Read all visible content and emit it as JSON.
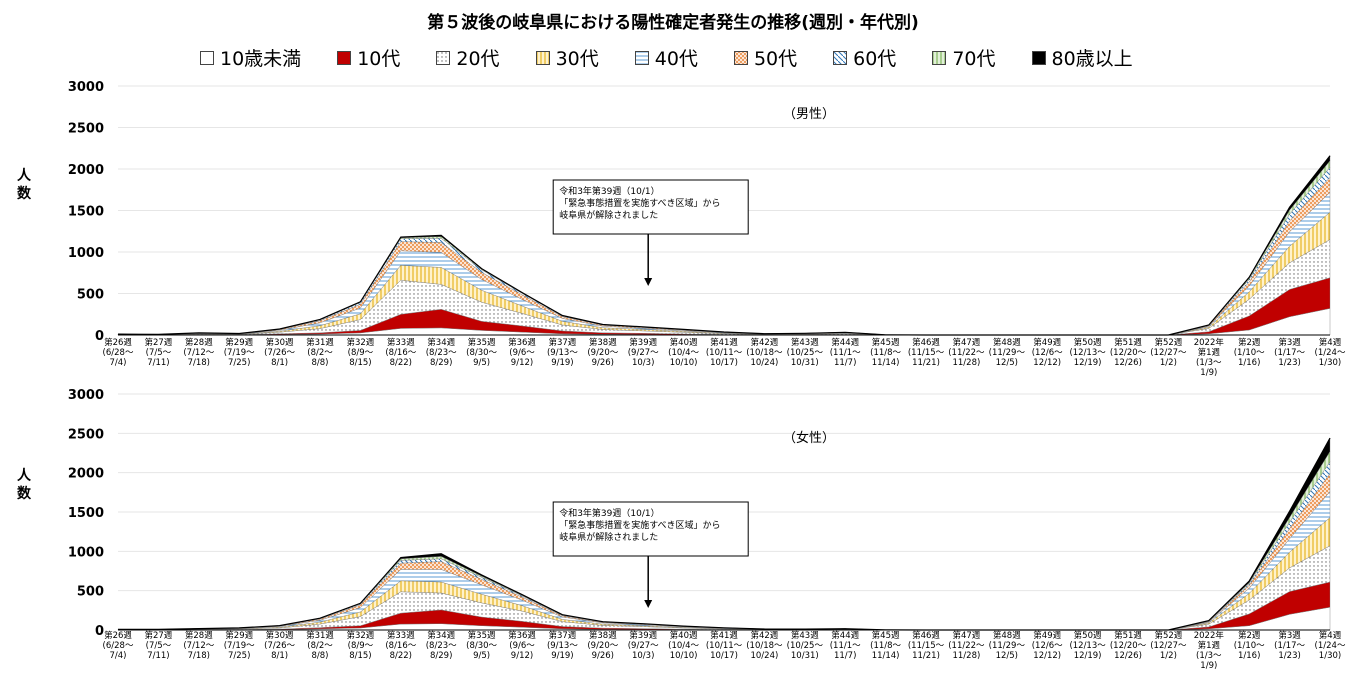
{
  "title": "第５波後の岐阜県における陽性確定者発生の推移(週別・年代別)",
  "legend": [
    {
      "name": "10歳未満",
      "color": "#ffffff",
      "pattern": "none"
    },
    {
      "name": "10代",
      "color": "#c00000",
      "pattern": "solid"
    },
    {
      "name": "20代",
      "color": "#ffffff",
      "pattern": "dots"
    },
    {
      "name": "30代",
      "color": "#ffd966",
      "pattern": "vlines"
    },
    {
      "name": "40代",
      "color": "#9dc3e6",
      "pattern": "hlines"
    },
    {
      "name": "50代",
      "color": "#f4b183",
      "pattern": "grid"
    },
    {
      "name": "60代",
      "color": "#2e75b6",
      "pattern": "diag"
    },
    {
      "name": "70代",
      "color": "#a9d18e",
      "pattern": "vlines2"
    },
    {
      "name": "80歳以上",
      "color": "#000000",
      "pattern": "solid"
    }
  ],
  "chart_data": [
    {
      "type": "area",
      "stacked": true,
      "panel_label": "（男性）",
      "ylabel": "人\n数",
      "ylim": [
        0,
        3000
      ],
      "yticks": [
        "0",
        "500",
        "1000",
        "1500",
        "2000",
        "2500",
        "3000"
      ],
      "categories": [
        [
          "第26週",
          "(6/28～",
          "7/4)"
        ],
        [
          "第27週",
          "(7/5～",
          "7/11)"
        ],
        [
          "第28週",
          "(7/12～",
          "7/18)"
        ],
        [
          "第29週",
          "(7/19～",
          "7/25)"
        ],
        [
          "第30週",
          "(7/26～",
          "8/1)"
        ],
        [
          "第31週",
          "(8/2～",
          "8/8)"
        ],
        [
          "第32週",
          "(8/9～",
          "8/15)"
        ],
        [
          "第33週",
          "(8/16～",
          "8/22)"
        ],
        [
          "第34週",
          "(8/23～",
          "8/29)"
        ],
        [
          "第35週",
          "(8/30～",
          "9/5)"
        ],
        [
          "第36週",
          "(9/6～",
          "9/12)"
        ],
        [
          "第37週",
          "(9/13～",
          "9/19)"
        ],
        [
          "第38週",
          "(9/20～",
          "9/26)"
        ],
        [
          "第39週",
          "(9/27～",
          "10/3)"
        ],
        [
          "第40週",
          "(10/4～",
          "10/10)"
        ],
        [
          "第41週",
          "(10/11～",
          "10/17)"
        ],
        [
          "第42週",
          "(10/18～",
          "10/24)"
        ],
        [
          "第43週",
          "(10/25～",
          "10/31)"
        ],
        [
          "第44週",
          "(11/1～",
          "11/7)"
        ],
        [
          "第45週",
          "(11/8～",
          "11/14)"
        ],
        [
          "第46週",
          "(11/15～",
          "11/21)"
        ],
        [
          "第47週",
          "(11/22～",
          "11/28)"
        ],
        [
          "第48週",
          "(11/29～",
          "12/5)"
        ],
        [
          "第49週",
          "(12/6～",
          "12/12)"
        ],
        [
          "第50週",
          "(12/13～",
          "12/19)"
        ],
        [
          "第51週",
          "(12/20～",
          "12/26)"
        ],
        [
          "第52週",
          "(12/27～",
          "1/2)"
        ],
        [
          "2022年",
          "第1週",
          "(1/3～",
          "1/9)"
        ],
        [
          "第2週",
          "(1/10～",
          "1/16)"
        ],
        [
          "第3週",
          "(1/17～",
          "1/23)"
        ],
        [
          "第4週",
          "(1/24～",
          "1/30)"
        ]
      ],
      "series": [
        {
          "name": "10歳未満",
          "values": [
            1,
            1,
            3,
            2,
            6,
            12,
            25,
            80,
            85,
            55,
            35,
            15,
            8,
            6,
            4,
            2,
            1,
            1,
            2,
            0,
            0,
            0,
            0,
            0,
            0,
            0,
            0,
            15,
            60,
            220,
            320
          ]
        },
        {
          "name": "10代",
          "values": [
            1,
            1,
            3,
            2,
            8,
            15,
            30,
            170,
            225,
            110,
            75,
            35,
            18,
            14,
            8,
            4,
            2,
            2,
            3,
            0,
            0,
            0,
            0,
            0,
            0,
            0,
            0,
            25,
            170,
            330,
            370
          ]
        },
        {
          "name": "20代",
          "values": [
            3,
            2,
            6,
            5,
            20,
            50,
            130,
            410,
            300,
            230,
            150,
            70,
            40,
            30,
            20,
            10,
            4,
            6,
            10,
            1,
            0,
            0,
            0,
            0,
            0,
            0,
            0,
            40,
            200,
            320,
            460
          ]
        },
        {
          "name": "30代",
          "values": [
            2,
            1,
            4,
            3,
            12,
            35,
            70,
            180,
            205,
            145,
            90,
            45,
            22,
            17,
            12,
            7,
            3,
            4,
            6,
            1,
            0,
            0,
            0,
            0,
            0,
            0,
            0,
            15,
            90,
            200,
            330
          ]
        },
        {
          "name": "40代",
          "values": [
            2,
            1,
            4,
            3,
            12,
            35,
            70,
            175,
            180,
            130,
            80,
            35,
            18,
            14,
            10,
            6,
            3,
            4,
            5,
            1,
            0,
            0,
            0,
            0,
            0,
            0,
            0,
            10,
            70,
            175,
            240
          ]
        },
        {
          "name": "50代",
          "values": [
            1,
            1,
            3,
            2,
            8,
            25,
            45,
            110,
            120,
            85,
            55,
            22,
            12,
            10,
            8,
            4,
            2,
            2,
            4,
            0,
            0,
            0,
            0,
            0,
            0,
            0,
            0,
            8,
            50,
            130,
            180
          ]
        },
        {
          "name": "60代",
          "values": [
            1,
            0,
            1,
            1,
            3,
            10,
            20,
            35,
            50,
            30,
            18,
            8,
            5,
            4,
            3,
            2,
            1,
            1,
            2,
            0,
            0,
            0,
            0,
            0,
            0,
            0,
            0,
            3,
            30,
            80,
            120
          ]
        },
        {
          "name": "70代",
          "values": [
            0,
            0,
            1,
            0,
            2,
            4,
            6,
            12,
            20,
            10,
            6,
            3,
            2,
            2,
            1,
            1,
            0,
            0,
            1,
            0,
            0,
            0,
            0,
            0,
            0,
            0,
            0,
            2,
            15,
            50,
            80
          ]
        },
        {
          "name": "80歳以上",
          "values": [
            0,
            0,
            0,
            0,
            1,
            2,
            4,
            8,
            15,
            5,
            3,
            2,
            1,
            1,
            1,
            0,
            0,
            0,
            0,
            0,
            0,
            0,
            0,
            0,
            0,
            0,
            0,
            2,
            10,
            35,
            60
          ]
        }
      ],
      "annotation": {
        "lines": [
          "令和3年第39週（10/1）",
          "「緊急事態措置を実施すべき区域」から",
          "岐阜県が解除されました"
        ],
        "category_index": 13
      }
    },
    {
      "type": "area",
      "stacked": true,
      "panel_label": "（女性）",
      "ylabel": "人\n数",
      "ylim": [
        0,
        3000
      ],
      "yticks": [
        "0",
        "500",
        "1000",
        "1500",
        "2000",
        "2500",
        "3000"
      ],
      "categories": [
        [
          "第26週",
          "(6/28～",
          "7/4)"
        ],
        [
          "第27週",
          "(7/5～",
          "7/11)"
        ],
        [
          "第28週",
          "(7/12～",
          "7/18)"
        ],
        [
          "第29週",
          "(7/19～",
          "7/25)"
        ],
        [
          "第30週",
          "(7/26～",
          "8/1)"
        ],
        [
          "第31週",
          "(8/2～",
          "8/8)"
        ],
        [
          "第32週",
          "(8/9～",
          "8/15)"
        ],
        [
          "第33週",
          "(8/16～",
          "8/22)"
        ],
        [
          "第34週",
          "(8/23～",
          "8/29)"
        ],
        [
          "第35週",
          "(8/30～",
          "9/5)"
        ],
        [
          "第36週",
          "(9/6～",
          "9/12)"
        ],
        [
          "第37週",
          "(9/13～",
          "9/19)"
        ],
        [
          "第38週",
          "(9/20～",
          "9/26)"
        ],
        [
          "第39週",
          "(9/27～",
          "10/3)"
        ],
        [
          "第40週",
          "(10/4～",
          "10/10)"
        ],
        [
          "第41週",
          "(10/11～",
          "10/17)"
        ],
        [
          "第42週",
          "(10/18～",
          "10/24)"
        ],
        [
          "第43週",
          "(10/25～",
          "10/31)"
        ],
        [
          "第44週",
          "(11/1～",
          "11/7)"
        ],
        [
          "第45週",
          "(11/8～",
          "11/14)"
        ],
        [
          "第46週",
          "(11/15～",
          "11/21)"
        ],
        [
          "第47週",
          "(11/22～",
          "11/28)"
        ],
        [
          "第48週",
          "(11/29～",
          "12/5)"
        ],
        [
          "第49週",
          "(12/6～",
          "12/12)"
        ],
        [
          "第50週",
          "(12/13～",
          "12/19)"
        ],
        [
          "第51週",
          "(12/20～",
          "12/26)"
        ],
        [
          "第52週",
          "(12/27～",
          "1/2)"
        ],
        [
          "2022年",
          "第1週",
          "(1/3～",
          "1/9)"
        ],
        [
          "第2週",
          "(1/10～",
          "1/16)"
        ],
        [
          "第3週",
          "(1/17～",
          "1/23)"
        ],
        [
          "第4週",
          "(1/24～",
          "1/30)"
        ]
      ],
      "series": [
        {
          "name": "10歳未満",
          "values": [
            1,
            1,
            2,
            3,
            5,
            15,
            25,
            75,
            80,
            55,
            35,
            15,
            8,
            6,
            4,
            2,
            1,
            1,
            1,
            0,
            0,
            0,
            0,
            0,
            0,
            0,
            0,
            15,
            55,
            200,
            290
          ]
        },
        {
          "name": "10代",
          "values": [
            1,
            1,
            2,
            3,
            6,
            15,
            30,
            140,
            175,
            110,
            75,
            30,
            16,
            12,
            6,
            3,
            2,
            1,
            2,
            0,
            0,
            0,
            0,
            0,
            0,
            0,
            0,
            25,
            150,
            290,
            320
          ]
        },
        {
          "name": "20代",
          "values": [
            2,
            2,
            5,
            8,
            15,
            45,
            115,
            270,
            215,
            180,
            130,
            60,
            35,
            25,
            15,
            8,
            4,
            4,
            5,
            1,
            0,
            0,
            0,
            0,
            0,
            0,
            0,
            35,
            175,
            300,
            460
          ]
        },
        {
          "name": "30代",
          "values": [
            1,
            1,
            3,
            5,
            10,
            25,
            60,
            140,
            140,
            110,
            70,
            30,
            16,
            12,
            8,
            5,
            2,
            2,
            3,
            0,
            0,
            0,
            0,
            0,
            0,
            0,
            0,
            15,
            85,
            200,
            360
          ]
        },
        {
          "name": "40代",
          "values": [
            1,
            1,
            3,
            4,
            10,
            25,
            55,
            145,
            160,
            120,
            70,
            30,
            15,
            12,
            8,
            5,
            2,
            2,
            3,
            0,
            0,
            0,
            0,
            0,
            0,
            0,
            0,
            10,
            65,
            170,
            330
          ]
        },
        {
          "name": "50代",
          "values": [
            1,
            1,
            2,
            3,
            6,
            15,
            35,
            80,
            100,
            70,
            40,
            16,
            8,
            7,
            5,
            3,
            1,
            1,
            2,
            0,
            0,
            0,
            0,
            0,
            0,
            0,
            0,
            8,
            40,
            130,
            230
          ]
        },
        {
          "name": "60代",
          "values": [
            0,
            0,
            1,
            1,
            2,
            6,
            12,
            35,
            35,
            25,
            15,
            6,
            3,
            3,
            2,
            1,
            1,
            0,
            1,
            0,
            0,
            0,
            0,
            0,
            0,
            0,
            0,
            3,
            20,
            80,
            150
          ]
        },
        {
          "name": "70代",
          "values": [
            0,
            0,
            0,
            0,
            1,
            3,
            5,
            20,
            30,
            15,
            8,
            4,
            2,
            2,
            1,
            1,
            0,
            0,
            0,
            0,
            0,
            0,
            0,
            0,
            0,
            0,
            0,
            3,
            12,
            60,
            130
          ]
        },
        {
          "name": "80歳以上",
          "values": [
            0,
            0,
            0,
            0,
            1,
            1,
            3,
            15,
            35,
            15,
            7,
            4,
            2,
            1,
            1,
            0,
            0,
            0,
            0,
            0,
            0,
            0,
            0,
            0,
            0,
            0,
            0,
            5,
            20,
            80,
            170
          ]
        }
      ],
      "annotation": {
        "lines": [
          "令和3年第39週（10/1）",
          "「緊急事態措置を実施すべき区域」から",
          "岐阜県が解除されました"
        ],
        "category_index": 13
      }
    }
  ]
}
